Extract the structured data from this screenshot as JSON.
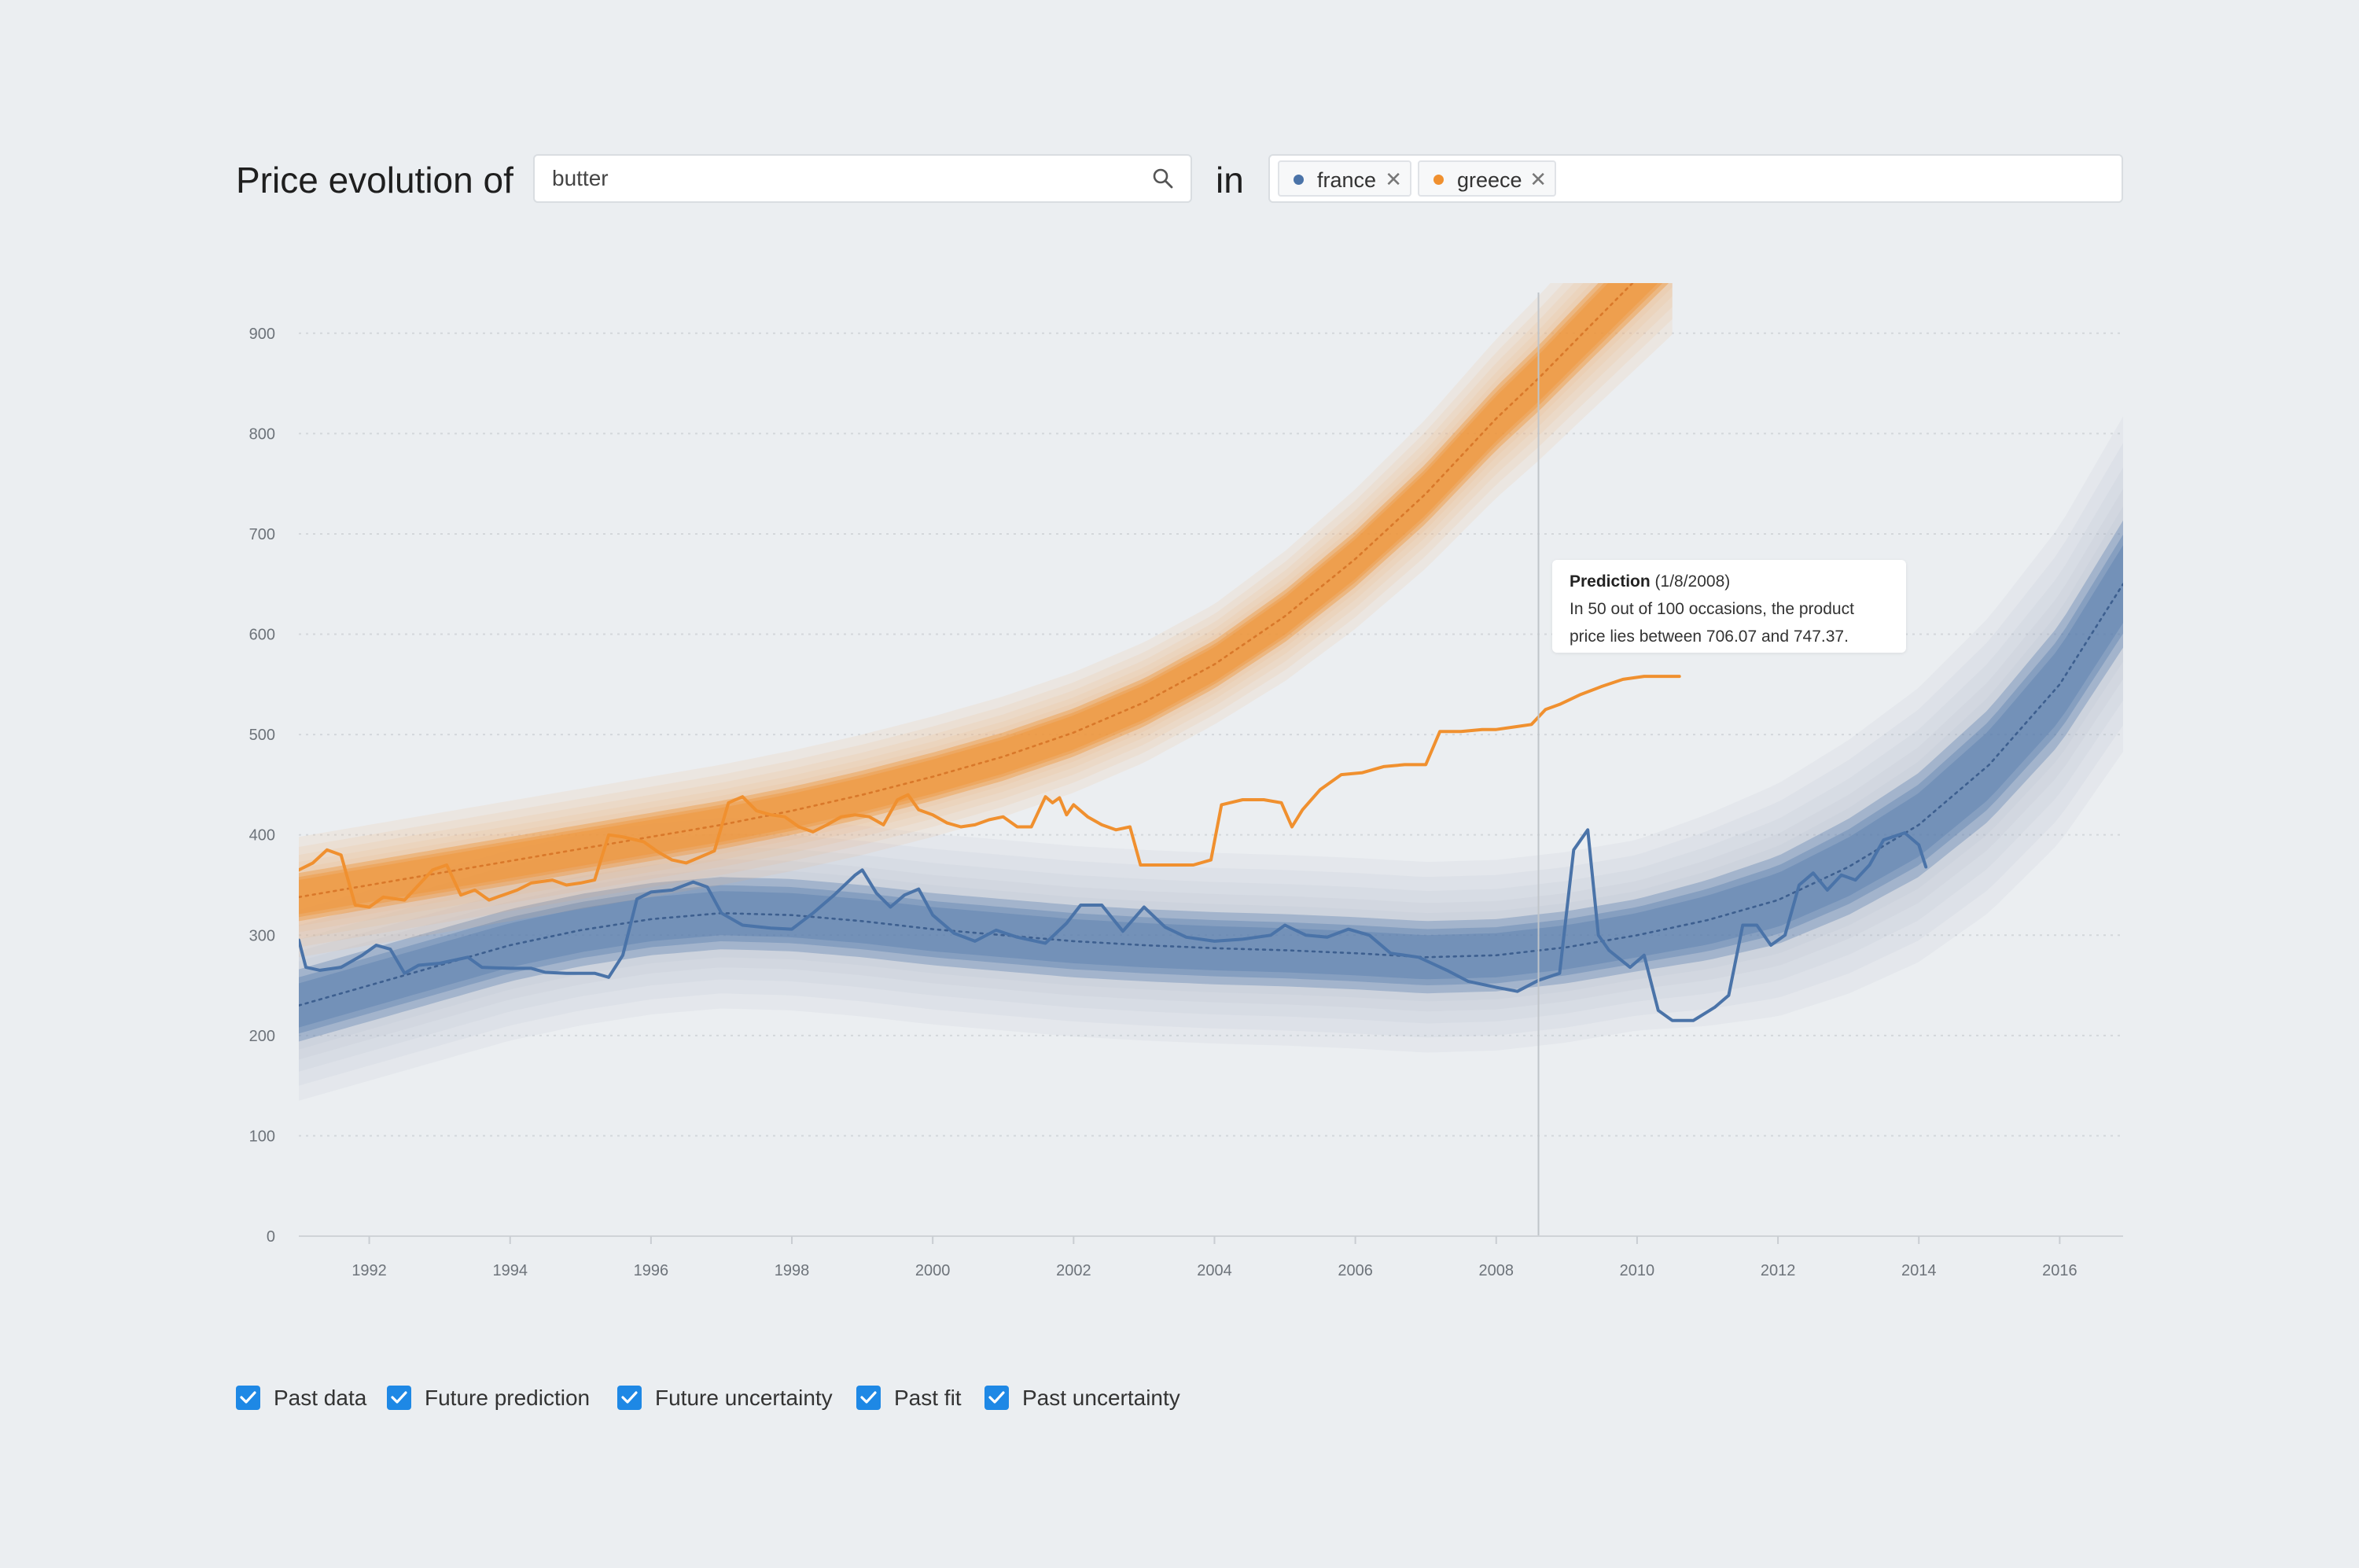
{
  "header": {
    "title": "Price evolution of",
    "search_value": "butter",
    "in_label": "in",
    "tags": [
      {
        "label": "france",
        "color": "#4a73a8"
      },
      {
        "label": "greece",
        "color": "#f0902f"
      }
    ]
  },
  "tooltip": {
    "title": "Prediction",
    "date": "(1/8/2008)",
    "line1": "In 50 out of 100 occasions, the product",
    "line2": "price lies between 706.07 and 747.37."
  },
  "legend": [
    {
      "label": "Past data",
      "checked": true
    },
    {
      "label": "Future prediction",
      "checked": true
    },
    {
      "label": "Future uncertainty",
      "checked": true
    },
    {
      "label": "Past fit",
      "checked": true
    },
    {
      "label": "Past uncertainty",
      "checked": true
    }
  ],
  "chart_data": {
    "type": "line",
    "title": "",
    "xlabel": "",
    "ylabel": "",
    "xlim": [
      1991,
      2016.9
    ],
    "ylim": [
      0,
      950
    ],
    "x_ticks": [
      "1992",
      "1994",
      "1996",
      "1998",
      "2000",
      "2002",
      "2004",
      "2006",
      "2008",
      "2010",
      "2012",
      "2014",
      "2016"
    ],
    "y_ticks": [
      "0",
      "100",
      "200",
      "300",
      "400",
      "500",
      "600",
      "700",
      "800",
      "900"
    ],
    "grid": true,
    "cursor_x": 2008.6,
    "series": [
      {
        "name": "france",
        "color": "#4a73a8",
        "past_data": [
          [
            1991.0,
            295
          ],
          [
            1991.1,
            268
          ],
          [
            1991.3,
            265
          ],
          [
            1991.6,
            268
          ],
          [
            1991.9,
            280
          ],
          [
            1992.1,
            290
          ],
          [
            1992.3,
            286
          ],
          [
            1992.5,
            262
          ],
          [
            1992.7,
            270
          ],
          [
            1993.0,
            272
          ],
          [
            1993.4,
            278
          ],
          [
            1993.6,
            268
          ],
          [
            1994.0,
            267
          ],
          [
            1994.3,
            267
          ],
          [
            1994.5,
            263
          ],
          [
            1994.8,
            262
          ],
          [
            1995.2,
            262
          ],
          [
            1995.4,
            258
          ],
          [
            1995.6,
            280
          ],
          [
            1995.8,
            336
          ],
          [
            1996.0,
            343
          ],
          [
            1996.3,
            345
          ],
          [
            1996.6,
            353
          ],
          [
            1996.8,
            348
          ],
          [
            1997.0,
            322
          ],
          [
            1997.3,
            310
          ],
          [
            1997.7,
            307
          ],
          [
            1998.0,
            306
          ],
          [
            1998.3,
            322
          ],
          [
            1998.6,
            340
          ],
          [
            1998.9,
            360
          ],
          [
            1999.0,
            365
          ],
          [
            1999.2,
            342
          ],
          [
            1999.4,
            328
          ],
          [
            1999.6,
            340
          ],
          [
            1999.8,
            346
          ],
          [
            2000.0,
            320
          ],
          [
            2000.3,
            302
          ],
          [
            2000.6,
            294
          ],
          [
            2000.9,
            305
          ],
          [
            2001.2,
            298
          ],
          [
            2001.6,
            292
          ],
          [
            2001.9,
            312
          ],
          [
            2002.1,
            330
          ],
          [
            2002.4,
            330
          ],
          [
            2002.7,
            304
          ],
          [
            2003.0,
            328
          ],
          [
            2003.3,
            308
          ],
          [
            2003.6,
            298
          ],
          [
            2004.0,
            294
          ],
          [
            2004.4,
            296
          ],
          [
            2004.8,
            300
          ],
          [
            2005.0,
            310
          ],
          [
            2005.3,
            300
          ],
          [
            2005.6,
            298
          ],
          [
            2005.9,
            306
          ],
          [
            2006.2,
            300
          ],
          [
            2006.5,
            282
          ],
          [
            2006.9,
            278
          ],
          [
            2007.3,
            265
          ],
          [
            2007.6,
            254
          ],
          [
            2008.0,
            248
          ],
          [
            2008.3,
            244
          ],
          [
            2008.6,
            255
          ],
          [
            2008.9,
            262
          ],
          [
            2009.1,
            385
          ],
          [
            2009.3,
            405
          ],
          [
            2009.45,
            300
          ],
          [
            2009.6,
            285
          ],
          [
            2009.9,
            268
          ],
          [
            2010.1,
            280
          ],
          [
            2010.3,
            225
          ],
          [
            2010.5,
            215
          ],
          [
            2010.8,
            215
          ],
          [
            2011.1,
            228
          ],
          [
            2011.3,
            240
          ],
          [
            2011.5,
            310
          ],
          [
            2011.7,
            310
          ],
          [
            2011.9,
            290
          ],
          [
            2012.1,
            300
          ],
          [
            2012.3,
            350
          ],
          [
            2012.5,
            362
          ],
          [
            2012.7,
            345
          ],
          [
            2012.9,
            360
          ],
          [
            2013.1,
            355
          ],
          [
            2013.3,
            370
          ],
          [
            2013.5,
            395
          ],
          [
            2013.8,
            402
          ],
          [
            2014.0,
            390
          ],
          [
            2014.1,
            368
          ]
        ],
        "fit": [
          [
            1991.0,
            230
          ],
          [
            1992,
            250
          ],
          [
            1993,
            270
          ],
          [
            1994,
            290
          ],
          [
            1995,
            305
          ],
          [
            1996,
            316
          ],
          [
            1997,
            322
          ],
          [
            1998,
            320
          ],
          [
            1999,
            314
          ],
          [
            2000,
            306
          ],
          [
            2001,
            300
          ],
          [
            2002,
            294
          ],
          [
            2003,
            290
          ],
          [
            2004,
            287
          ],
          [
            2005,
            285
          ],
          [
            2006,
            282
          ],
          [
            2007,
            278
          ],
          [
            2008,
            280
          ],
          [
            2009,
            288
          ],
          [
            2010,
            300
          ],
          [
            2011,
            315
          ],
          [
            2012,
            335
          ],
          [
            2013,
            368
          ],
          [
            2014,
            410
          ],
          [
            2015,
            470
          ],
          [
            2016,
            550
          ],
          [
            2016.9,
            650
          ]
        ]
      },
      {
        "name": "greece",
        "color": "#f0902f",
        "past_data": [
          [
            1991.0,
            365
          ],
          [
            1991.2,
            372
          ],
          [
            1991.4,
            385
          ],
          [
            1991.6,
            380
          ],
          [
            1991.8,
            330
          ],
          [
            1992.0,
            328
          ],
          [
            1992.2,
            338
          ],
          [
            1992.5,
            335
          ],
          [
            1992.7,
            350
          ],
          [
            1992.9,
            365
          ],
          [
            1993.1,
            370
          ],
          [
            1993.3,
            340
          ],
          [
            1993.5,
            345
          ],
          [
            1993.7,
            335
          ],
          [
            1993.9,
            340
          ],
          [
            1994.1,
            345
          ],
          [
            1994.3,
            352
          ],
          [
            1994.6,
            355
          ],
          [
            1994.8,
            350
          ],
          [
            1995.0,
            352
          ],
          [
            1995.2,
            355
          ],
          [
            1995.4,
            400
          ],
          [
            1995.6,
            398
          ],
          [
            1995.9,
            393
          ],
          [
            1996.1,
            383
          ],
          [
            1996.3,
            375
          ],
          [
            1996.5,
            372
          ],
          [
            1996.7,
            378
          ],
          [
            1996.9,
            384
          ],
          [
            1997.1,
            432
          ],
          [
            1997.3,
            438
          ],
          [
            1997.5,
            424
          ],
          [
            1997.7,
            420
          ],
          [
            1997.9,
            418
          ],
          [
            1998.1,
            408
          ],
          [
            1998.3,
            403
          ],
          [
            1998.5,
            410
          ],
          [
            1998.7,
            418
          ],
          [
            1998.9,
            420
          ],
          [
            1999.1,
            418
          ],
          [
            1999.3,
            410
          ],
          [
            1999.5,
            435
          ],
          [
            1999.65,
            440
          ],
          [
            1999.8,
            425
          ],
          [
            2000.0,
            420
          ],
          [
            2000.2,
            412
          ],
          [
            2000.4,
            408
          ],
          [
            2000.6,
            410
          ],
          [
            2000.8,
            415
          ],
          [
            2001.0,
            418
          ],
          [
            2001.2,
            408
          ],
          [
            2001.4,
            408
          ],
          [
            2001.6,
            438
          ],
          [
            2001.7,
            432
          ],
          [
            2001.8,
            437
          ],
          [
            2001.9,
            420
          ],
          [
            2002.0,
            430
          ],
          [
            2002.2,
            418
          ],
          [
            2002.4,
            410
          ],
          [
            2002.6,
            405
          ],
          [
            2002.8,
            408
          ],
          [
            2002.95,
            370
          ],
          [
            2003.1,
            370
          ],
          [
            2003.4,
            370
          ],
          [
            2003.7,
            370
          ],
          [
            2003.95,
            375
          ],
          [
            2004.1,
            430
          ],
          [
            2004.4,
            435
          ],
          [
            2004.7,
            435
          ],
          [
            2004.95,
            432
          ],
          [
            2005.1,
            408
          ],
          [
            2005.25,
            425
          ],
          [
            2005.5,
            445
          ],
          [
            2005.8,
            460
          ],
          [
            2006.1,
            462
          ],
          [
            2006.4,
            468
          ],
          [
            2006.7,
            470
          ],
          [
            2007.0,
            470
          ],
          [
            2007.2,
            503
          ],
          [
            2007.5,
            503
          ],
          [
            2007.8,
            505
          ],
          [
            2008.0,
            505
          ],
          [
            2008.3,
            508
          ],
          [
            2008.5,
            510
          ],
          [
            2008.7,
            525
          ],
          [
            2008.9,
            530
          ],
          [
            2009.2,
            540
          ],
          [
            2009.5,
            548
          ],
          [
            2009.8,
            555
          ],
          [
            2010.1,
            558
          ],
          [
            2010.3,
            558
          ],
          [
            2010.6,
            558
          ]
        ],
        "fit": [
          [
            1991.0,
            338
          ],
          [
            1992,
            350
          ],
          [
            1993,
            362
          ],
          [
            1994,
            374
          ],
          [
            1995,
            386
          ],
          [
            1996,
            398
          ],
          [
            1997,
            410
          ],
          [
            1998,
            424
          ],
          [
            1999,
            440
          ],
          [
            2000,
            458
          ],
          [
            2001,
            478
          ],
          [
            2002,
            502
          ],
          [
            2003,
            532
          ],
          [
            2004,
            570
          ],
          [
            2005,
            618
          ],
          [
            2006,
            675
          ],
          [
            2007,
            740
          ],
          [
            2008,
            815
          ],
          [
            2008.6,
            855
          ],
          [
            2009.3,
            905
          ],
          [
            2010.5,
            990
          ]
        ]
      }
    ]
  }
}
